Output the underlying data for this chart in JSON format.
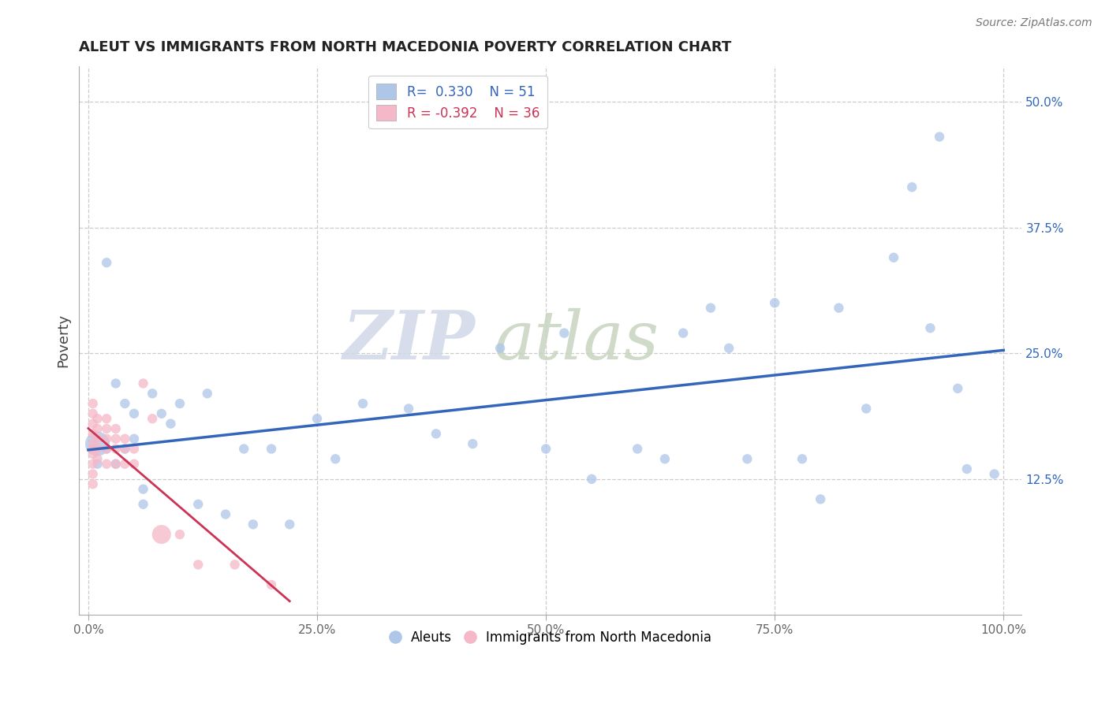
{
  "title": "ALEUT VS IMMIGRANTS FROM NORTH MACEDONIA POVERTY CORRELATION CHART",
  "source_text": "Source: ZipAtlas.com",
  "ylabel": "Poverty",
  "xlabel": "",
  "xlim": [
    -0.01,
    1.02
  ],
  "ylim": [
    -0.01,
    0.535
  ],
  "yticks": [
    0.125,
    0.25,
    0.375,
    0.5
  ],
  "ytick_labels": [
    "12.5%",
    "25.0%",
    "37.5%",
    "50.0%"
  ],
  "xticks": [
    0.0,
    0.25,
    0.5,
    0.75,
    1.0
  ],
  "xtick_labels": [
    "0.0%",
    "25.0%",
    "50.0%",
    "75.0%",
    "100.0%"
  ],
  "legend_R1": "R=  0.330",
  "legend_N1": "N = 51",
  "legend_R2": "R = -0.392",
  "legend_N2": "N = 36",
  "series1_color": "#aec6e8",
  "series2_color": "#f4b8c8",
  "line1_color": "#3366bb",
  "line2_color": "#cc3355",
  "watermark_zip": "ZIP",
  "watermark_atlas": "atlas",
  "background_color": "#ffffff",
  "aleuts_x": [
    0.01,
    0.01,
    0.02,
    0.03,
    0.04,
    0.05,
    0.06,
    0.07,
    0.08,
    0.09,
    0.1,
    0.12,
    0.13,
    0.15,
    0.17,
    0.18,
    0.2,
    0.22,
    0.25,
    0.27,
    0.3,
    0.35,
    0.38,
    0.42,
    0.45,
    0.5,
    0.52,
    0.55,
    0.6,
    0.63,
    0.65,
    0.68,
    0.7,
    0.72,
    0.75,
    0.78,
    0.8,
    0.82,
    0.85,
    0.88,
    0.9,
    0.92,
    0.93,
    0.95,
    0.96,
    0.99,
    0.03,
    0.04,
    0.05,
    0.06,
    0.02
  ],
  "aleuts_y": [
    0.16,
    0.14,
    0.155,
    0.14,
    0.155,
    0.165,
    0.1,
    0.21,
    0.19,
    0.18,
    0.2,
    0.1,
    0.21,
    0.09,
    0.155,
    0.08,
    0.155,
    0.08,
    0.185,
    0.145,
    0.2,
    0.195,
    0.17,
    0.16,
    0.255,
    0.155,
    0.27,
    0.125,
    0.155,
    0.145,
    0.27,
    0.295,
    0.255,
    0.145,
    0.3,
    0.145,
    0.105,
    0.295,
    0.195,
    0.345,
    0.415,
    0.275,
    0.465,
    0.215,
    0.135,
    0.13,
    0.22,
    0.2,
    0.19,
    0.115,
    0.34
  ],
  "aleuts_size": [
    500,
    80,
    80,
    80,
    80,
    80,
    80,
    80,
    80,
    80,
    80,
    80,
    80,
    80,
    80,
    80,
    80,
    80,
    80,
    80,
    80,
    80,
    80,
    80,
    80,
    80,
    80,
    80,
    80,
    80,
    80,
    80,
    80,
    80,
    80,
    80,
    80,
    80,
    80,
    80,
    80,
    80,
    80,
    80,
    80,
    80,
    80,
    80,
    80,
    80,
    80
  ],
  "macedonia_x": [
    0.005,
    0.005,
    0.005,
    0.005,
    0.005,
    0.005,
    0.005,
    0.005,
    0.005,
    0.005,
    0.01,
    0.01,
    0.01,
    0.01,
    0.01,
    0.02,
    0.02,
    0.02,
    0.02,
    0.02,
    0.03,
    0.03,
    0.03,
    0.03,
    0.04,
    0.04,
    0.04,
    0.05,
    0.05,
    0.06,
    0.07,
    0.08,
    0.1,
    0.12,
    0.16,
    0.2
  ],
  "macedonia_y": [
    0.2,
    0.19,
    0.18,
    0.17,
    0.16,
    0.155,
    0.15,
    0.14,
    0.13,
    0.12,
    0.185,
    0.175,
    0.165,
    0.155,
    0.145,
    0.185,
    0.175,
    0.165,
    0.155,
    0.14,
    0.175,
    0.165,
    0.155,
    0.14,
    0.165,
    0.155,
    0.14,
    0.155,
    0.14,
    0.22,
    0.185,
    0.07,
    0.07,
    0.04,
    0.04,
    0.02
  ],
  "macedonia_size": [
    80,
    80,
    80,
    80,
    80,
    80,
    80,
    80,
    80,
    80,
    80,
    80,
    80,
    80,
    80,
    80,
    80,
    80,
    80,
    80,
    80,
    80,
    80,
    80,
    80,
    80,
    80,
    80,
    80,
    80,
    80,
    300,
    80,
    80,
    80,
    80
  ]
}
